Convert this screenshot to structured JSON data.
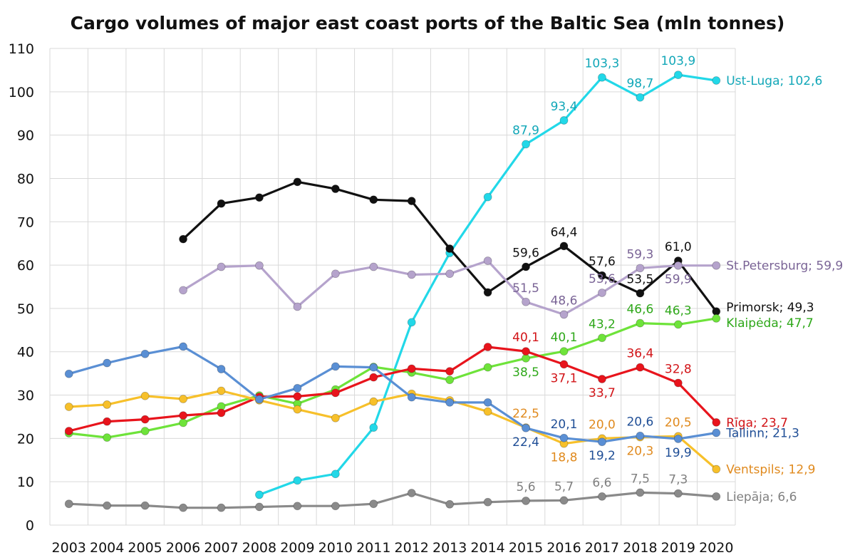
{
  "chart_data": {
    "type": "line",
    "title": "Cargo volumes of major east coast ports of the Baltic Sea (mln tonnes)",
    "xlabel": "",
    "ylabel": "",
    "ylim": [
      0,
      110
    ],
    "yticks": [
      0,
      10,
      20,
      30,
      40,
      50,
      60,
      70,
      80,
      90,
      100,
      110
    ],
    "x": [
      "2003",
      "2004",
      "2005",
      "2006",
      "2007",
      "2008",
      "2009",
      "2010",
      "2011",
      "2012",
      "2013",
      "2014",
      "2015",
      "2016",
      "2017",
      "2018",
      "2019",
      "2020"
    ],
    "grid": true,
    "legend": "none (series labelled at line ends)",
    "series": [
      {
        "name": "Ust-Luga",
        "end_label": "Ust-Luga; 102,6",
        "color": "#22d8e8",
        "label_color": "#12a7b8",
        "values": [
          null,
          null,
          null,
          null,
          null,
          7.0,
          10.3,
          11.8,
          22.5,
          46.8,
          62.8,
          75.7,
          87.9,
          93.4,
          103.3,
          98.7,
          103.9,
          102.6
        ],
        "labels": [
          {
            "year": "2015",
            "text": "87,9",
            "pos": "above"
          },
          {
            "year": "2016",
            "text": "93,4",
            "pos": "above"
          },
          {
            "year": "2017",
            "text": "103,3",
            "pos": "above"
          },
          {
            "year": "2018",
            "text": "98,7",
            "pos": "above"
          },
          {
            "year": "2019",
            "text": "103,9",
            "pos": "above"
          }
        ]
      },
      {
        "name": "Primorsk",
        "end_label": "Primorsk; 49,3",
        "color": "#111111",
        "label_color": "#111111",
        "values": [
          null,
          null,
          null,
          66.0,
          74.2,
          75.6,
          79.2,
          77.6,
          75.1,
          74.8,
          63.8,
          53.7,
          59.6,
          64.4,
          57.6,
          53.5,
          61.0,
          49.3
        ],
        "labels": [
          {
            "year": "2015",
            "text": "59,6",
            "pos": "above"
          },
          {
            "year": "2016",
            "text": "64,4",
            "pos": "above"
          },
          {
            "year": "2017",
            "text": "57,6",
            "pos": "above"
          },
          {
            "year": "2018",
            "text": "53,5",
            "pos": "above"
          },
          {
            "year": "2019",
            "text": "61,0",
            "pos": "above"
          }
        ]
      },
      {
        "name": "St.Petersburg",
        "end_label": "St.Petersburg; 59,9",
        "color": "#b5a3cc",
        "label_color": "#7a6496",
        "values": [
          null,
          null,
          null,
          54.2,
          59.6,
          59.9,
          50.4,
          58.0,
          59.6,
          57.8,
          58.0,
          61.0,
          51.5,
          48.6,
          53.6,
          59.3,
          59.9,
          59.9
        ],
        "labels": [
          {
            "year": "2015",
            "text": "51,5",
            "pos": "above"
          },
          {
            "year": "2016",
            "text": "48,6",
            "pos": "above"
          },
          {
            "year": "2017",
            "text": "53,6",
            "pos": "above"
          },
          {
            "year": "2018",
            "text": "59,3",
            "pos": "above"
          },
          {
            "year": "2019",
            "text": "59,9",
            "pos": "below"
          }
        ]
      },
      {
        "name": "Klaipėda",
        "end_label": "Klaipėda; 47,7",
        "color": "#6ee33a",
        "label_color": "#2fa81a",
        "values": [
          21.2,
          20.2,
          21.7,
          23.6,
          27.4,
          29.9,
          28.0,
          31.3,
          36.5,
          35.2,
          33.5,
          36.4,
          38.5,
          40.1,
          43.2,
          46.6,
          46.3,
          47.7
        ],
        "labels": [
          {
            "year": "2015",
            "text": "38,5",
            "pos": "below"
          },
          {
            "year": "2016",
            "text": "40,1",
            "pos": "above"
          },
          {
            "year": "2017",
            "text": "43,2",
            "pos": "above"
          },
          {
            "year": "2018",
            "text": "46,6",
            "pos": "above"
          },
          {
            "year": "2019",
            "text": "46,3",
            "pos": "above"
          }
        ]
      },
      {
        "name": "Rīga",
        "end_label": "Rīga; 23,7",
        "color": "#e8141c",
        "label_color": "#d21418",
        "values": [
          21.7,
          23.9,
          24.4,
          25.3,
          25.9,
          29.6,
          29.7,
          30.5,
          34.1,
          36.1,
          35.5,
          41.1,
          40.1,
          37.1,
          33.7,
          36.4,
          32.8,
          23.7
        ],
        "labels": [
          {
            "year": "2015",
            "text": "40,1",
            "pos": "above"
          },
          {
            "year": "2016",
            "text": "37,1",
            "pos": "below"
          },
          {
            "year": "2017",
            "text": "33,7",
            "pos": "below"
          },
          {
            "year": "2018",
            "text": "36,4",
            "pos": "above"
          },
          {
            "year": "2019",
            "text": "32,8",
            "pos": "above"
          }
        ]
      },
      {
        "name": "Ventspils",
        "end_label": "Ventspils; 12,9",
        "color": "#f7c02a",
        "label_color": "#e08a1e",
        "values": [
          27.3,
          27.8,
          29.8,
          29.1,
          31.0,
          28.8,
          26.7,
          24.7,
          28.5,
          30.3,
          28.8,
          26.2,
          22.5,
          18.8,
          20.0,
          20.3,
          20.5,
          12.9
        ],
        "labels": [
          {
            "year": "2015",
            "text": "22,5",
            "pos": "above"
          },
          {
            "year": "2016",
            "text": "18,8",
            "pos": "below"
          },
          {
            "year": "2017",
            "text": "20,0",
            "pos": "above"
          },
          {
            "year": "2018",
            "text": "20,3",
            "pos": "below"
          },
          {
            "year": "2019",
            "text": "20,5",
            "pos": "above"
          }
        ]
      },
      {
        "name": "Tallinn",
        "end_label": "Tallinn; 21,3",
        "color": "#5a8fd4",
        "label_color": "#1f4e96",
        "values": [
          34.9,
          37.4,
          39.5,
          41.2,
          36.0,
          29.0,
          31.6,
          36.6,
          36.4,
          29.5,
          28.3,
          28.3,
          22.4,
          20.1,
          19.2,
          20.6,
          19.9,
          21.3
        ],
        "labels": [
          {
            "year": "2015",
            "text": "22,4",
            "pos": "below"
          },
          {
            "year": "2016",
            "text": "20,1",
            "pos": "above"
          },
          {
            "year": "2017",
            "text": "19,2",
            "pos": "below"
          },
          {
            "year": "2018",
            "text": "20,6",
            "pos": "above"
          },
          {
            "year": "2019",
            "text": "19,9",
            "pos": "below"
          }
        ]
      },
      {
        "name": "Liepāja",
        "end_label": "Liepāja; 6,6",
        "color": "#8a8a8a",
        "label_color": "#808080",
        "values": [
          4.9,
          4.5,
          4.5,
          4.0,
          4.0,
          4.2,
          4.4,
          4.4,
          4.9,
          7.4,
          4.8,
          5.3,
          5.6,
          5.7,
          6.6,
          7.5,
          7.3,
          6.6
        ],
        "labels": [
          {
            "year": "2015",
            "text": "5,6",
            "pos": "above"
          },
          {
            "year": "2016",
            "text": "5,7",
            "pos": "above"
          },
          {
            "year": "2017",
            "text": "6,6",
            "pos": "above"
          },
          {
            "year": "2018",
            "text": "7,5",
            "pos": "above"
          },
          {
            "year": "2019",
            "text": "7,3",
            "pos": "above"
          }
        ]
      }
    ]
  }
}
